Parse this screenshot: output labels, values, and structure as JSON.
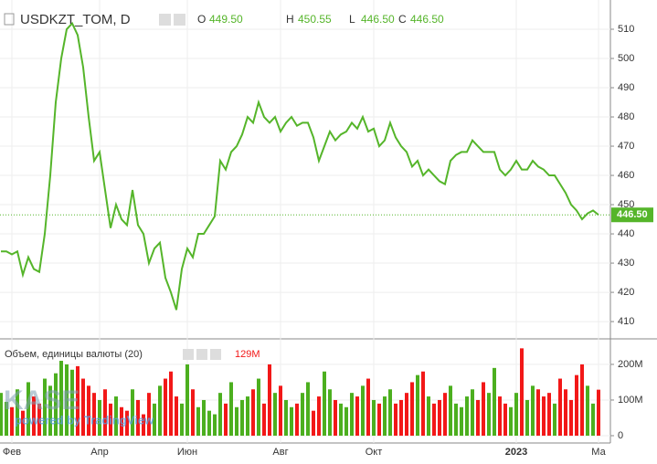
{
  "chart_data": {
    "type": "line",
    "title": "USDKZT_TOM, D",
    "ohlc": [
      {
        "key": "O",
        "value": {
          "value": 449.5,
          "label": "449.50"
        }
      },
      {
        "key": "H",
        "value": {
          "value": 450.55,
          "label": "450.55"
        }
      },
      {
        "key": "L",
        "value": {
          "value": 446.5,
          "label": "446.50"
        }
      },
      {
        "key": "C",
        "value": {
          "value": 446.5,
          "label": "446.50"
        }
      }
    ],
    "color": "#55b52a",
    "categories": [
      null,
      null,
      "Фев",
      null,
      null,
      null,
      null,
      null,
      null,
      null,
      null,
      null,
      null,
      null,
      null,
      null,
      null,
      null,
      "Апр",
      null,
      null,
      null,
      null,
      null,
      null,
      null,
      null,
      null,
      null,
      null,
      null,
      null,
      null,
      null,
      "Июн",
      null,
      null,
      null,
      null,
      null,
      null,
      null,
      null,
      null,
      null,
      null,
      null,
      null,
      null,
      null,
      null,
      "Авг",
      null,
      null,
      null,
      null,
      null,
      null,
      null,
      null,
      null,
      null,
      null,
      null,
      null,
      null,
      null,
      null,
      "Окт",
      null,
      null,
      null,
      null,
      null,
      null,
      null,
      null,
      null,
      null,
      null,
      null,
      null,
      null,
      null,
      null,
      null,
      null,
      null,
      null,
      null,
      null,
      null,
      null,
      null,
      "2023",
      null,
      null,
      null,
      null,
      null,
      null,
      null,
      null,
      null,
      null,
      null,
      null,
      null,
      null,
      "Ма"
    ],
    "values": [
      434,
      434,
      433,
      434,
      426,
      432,
      428,
      427,
      440,
      460,
      485,
      500,
      510,
      512,
      508,
      497,
      480,
      465,
      468,
      455,
      442,
      450,
      445,
      443,
      455,
      443,
      440,
      430,
      435,
      437,
      425,
      420,
      414,
      428,
      435,
      432,
      440,
      440,
      443,
      446,
      465,
      462,
      468,
      470,
      474,
      480,
      478,
      485,
      480,
      478,
      480,
      475,
      478,
      480,
      477,
      478,
      478,
      473,
      465,
      470,
      475,
      472,
      474,
      475,
      478,
      476,
      480,
      475,
      476,
      470,
      472,
      478,
      473,
      470,
      468,
      463,
      465,
      460,
      462,
      460,
      458,
      457,
      465,
      467,
      468,
      468,
      472,
      470,
      468,
      468,
      468,
      462,
      460,
      462,
      465,
      462,
      462,
      465,
      463,
      462,
      460,
      460,
      457,
      454,
      450,
      448,
      445,
      447,
      448,
      446.5
    ],
    "ylim": [
      404.4,
      520
    ],
    "yticks": [
      410,
      420,
      430,
      440,
      450,
      460,
      470,
      480,
      490,
      500,
      510
    ],
    "grid": true,
    "last_price": {
      "value": 446.5,
      "label": "446.50"
    },
    "watermark": {
      "logo": "KASE",
      "text": "powered by TradingView"
    },
    "volume": {
      "type": "bar",
      "title": "Объем, единицы валюты (20)",
      "legend_value": {
        "value": 129,
        "label": "129M"
      },
      "up_color": "#4caf1f",
      "down_color": "#f21818",
      "values": [
        120,
        95,
        80,
        130,
        70,
        150,
        110,
        90,
        160,
        140,
        175,
        210,
        200,
        185,
        195,
        160,
        140,
        120,
        100,
        130,
        90,
        110,
        80,
        70,
        130,
        100,
        60,
        120,
        90,
        140,
        160,
        180,
        110,
        90,
        200,
        130,
        80,
        100,
        70,
        60,
        120,
        90,
        150,
        80,
        100,
        110,
        130,
        160,
        90,
        200,
        120,
        140,
        100,
        80,
        90,
        120,
        150,
        70,
        110,
        180,
        130,
        100,
        90,
        80,
        120,
        110,
        140,
        160,
        100,
        90,
        110,
        130,
        90,
        100,
        120,
        150,
        170,
        180,
        110,
        90,
        100,
        120,
        140,
        90,
        80,
        110,
        130,
        100,
        150,
        120,
        190,
        110,
        90,
        80,
        120,
        245,
        100,
        140,
        130,
        110,
        120,
        90,
        160,
        130,
        100,
        170,
        200,
        140,
        90,
        129
      ],
      "ylim": [
        -20.5,
        269
      ],
      "yticks": [
        {
          "value": 0,
          "label": "0"
        },
        {
          "value": 100,
          "label": "100M"
        },
        {
          "value": 200,
          "label": "200M"
        }
      ]
    }
  }
}
